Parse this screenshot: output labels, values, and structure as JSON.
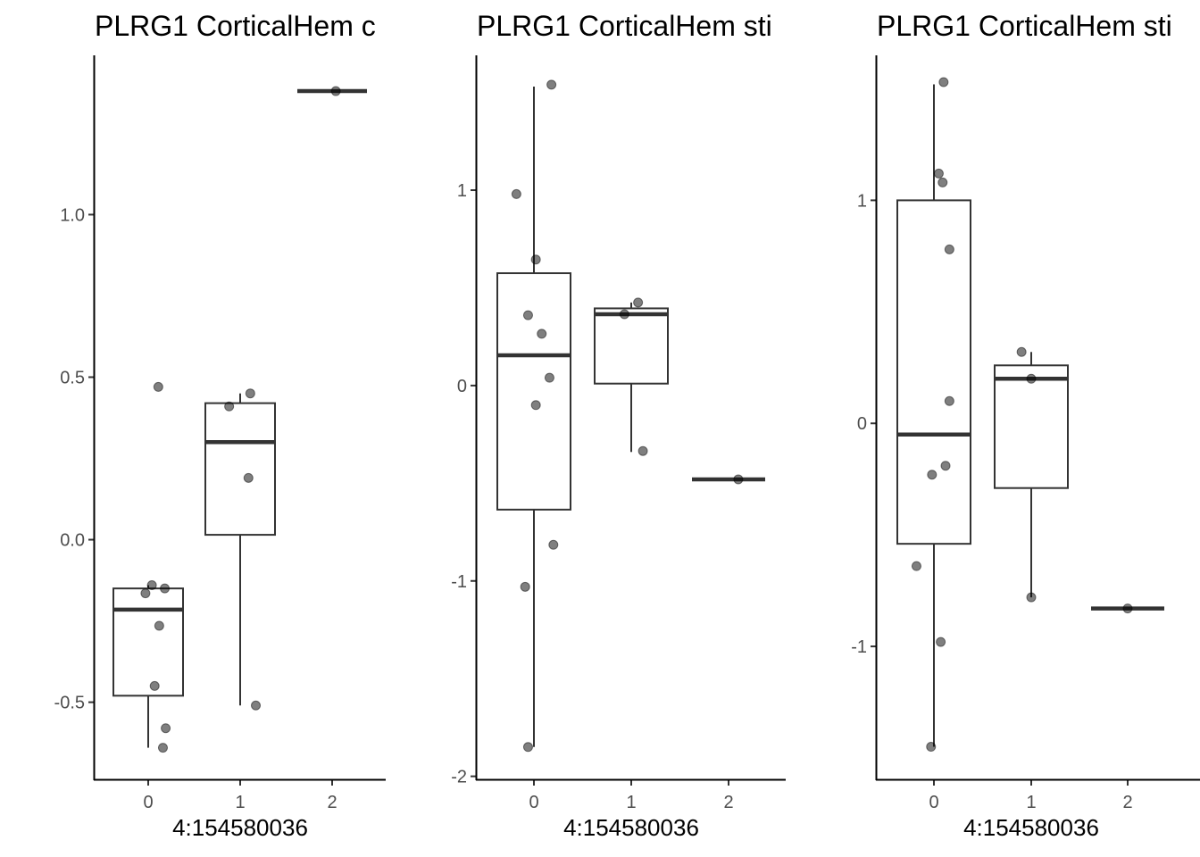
{
  "chart_data": [
    {
      "type": "box",
      "title": "PLRG1 CorticalHem c",
      "xlabel": "4:154580036",
      "ylabel": "",
      "categories": [
        "0",
        "1",
        "2"
      ],
      "ylim": [
        -0.74,
        1.49
      ],
      "yticks": [
        -0.5,
        0.0,
        0.5,
        1.0
      ],
      "ytick_labels": [
        "-0.5",
        "0.0",
        "0.5",
        "1.0"
      ],
      "boxes": [
        {
          "category": "0",
          "whisker_low": -0.64,
          "q1": -0.48,
          "median": -0.215,
          "q3": -0.15,
          "whisker_high": -0.14
        },
        {
          "category": "1",
          "whisker_low": -0.51,
          "q1": 0.015,
          "median": 0.3,
          "q3": 0.42,
          "whisker_high": 0.45
        },
        {
          "category": "2",
          "whisker_low": 1.38,
          "q1": 1.38,
          "median": 1.38,
          "q3": 1.38,
          "whisker_high": 1.38
        }
      ],
      "points": [
        {
          "category": "0",
          "x": 0.11,
          "y": 0.47
        },
        {
          "category": "0",
          "x": -0.03,
          "y": -0.165
        },
        {
          "category": "0",
          "x": 0.04,
          "y": -0.14
        },
        {
          "category": "0",
          "x": 0.18,
          "y": -0.15
        },
        {
          "category": "0",
          "x": 0.12,
          "y": -0.265
        },
        {
          "category": "0",
          "x": 0.07,
          "y": -0.45
        },
        {
          "category": "0",
          "x": 0.19,
          "y": -0.58
        },
        {
          "category": "0",
          "x": 0.16,
          "y": -0.64
        },
        {
          "category": "1",
          "x": 0.11,
          "y": 0.45
        },
        {
          "category": "1",
          "x": -0.12,
          "y": 0.41
        },
        {
          "category": "1",
          "x": 0.09,
          "y": 0.19
        },
        {
          "category": "1",
          "x": 0.17,
          "y": -0.51
        },
        {
          "category": "2",
          "x": 0.04,
          "y": 1.38
        }
      ]
    },
    {
      "type": "box",
      "title": "PLRG1 CorticalHem sti",
      "xlabel": "4:154580036",
      "ylabel": "",
      "categories": [
        "0",
        "1",
        "2"
      ],
      "ylim": [
        -2.02,
        1.69
      ],
      "yticks": [
        -2,
        -1,
        0,
        1
      ],
      "ytick_labels": [
        "-2",
        "-1",
        "0",
        "1"
      ],
      "boxes": [
        {
          "category": "0",
          "whisker_low": -1.85,
          "q1": -0.635,
          "median": 0.155,
          "q3": 0.575,
          "whisker_high": 1.53
        },
        {
          "category": "1",
          "whisker_low": -0.34,
          "q1": 0.01,
          "median": 0.365,
          "q3": 0.395,
          "whisker_high": 0.425
        },
        {
          "category": "2",
          "whisker_low": -0.48,
          "q1": -0.48,
          "median": -0.48,
          "q3": -0.48,
          "whisker_high": -0.48
        }
      ],
      "points": [
        {
          "category": "0",
          "x": 0.18,
          "y": 1.54
        },
        {
          "category": "0",
          "x": -0.18,
          "y": 0.98
        },
        {
          "category": "0",
          "x": 0.02,
          "y": 0.645
        },
        {
          "category": "0",
          "x": -0.06,
          "y": 0.36
        },
        {
          "category": "0",
          "x": 0.08,
          "y": 0.265
        },
        {
          "category": "0",
          "x": 0.16,
          "y": 0.04
        },
        {
          "category": "0",
          "x": 0.02,
          "y": -0.1
        },
        {
          "category": "0",
          "x": 0.2,
          "y": -0.815
        },
        {
          "category": "0",
          "x": -0.09,
          "y": -1.03
        },
        {
          "category": "0",
          "x": -0.06,
          "y": -1.85
        },
        {
          "category": "1",
          "x": 0.07,
          "y": 0.425
        },
        {
          "category": "1",
          "x": -0.07,
          "y": 0.365
        },
        {
          "category": "1",
          "x": 0.12,
          "y": -0.335
        },
        {
          "category": "2",
          "x": 0.1,
          "y": -0.48
        }
      ]
    },
    {
      "type": "box",
      "title": "PLRG1 CorticalHem sti",
      "xlabel": "4:154580036",
      "ylabel": "",
      "categories": [
        "0",
        "1",
        "2"
      ],
      "ylim": [
        -1.6,
        1.65
      ],
      "yticks": [
        -1,
        0,
        1
      ],
      "ytick_labels": [
        "-1",
        "0",
        "1"
      ],
      "boxes": [
        {
          "category": "0",
          "whisker_low": -1.45,
          "q1": -0.54,
          "median": -0.05,
          "q3": 1.0,
          "whisker_high": 1.52
        },
        {
          "category": "1",
          "whisker_low": -0.78,
          "q1": -0.29,
          "median": 0.2,
          "q3": 0.26,
          "whisker_high": 0.32
        },
        {
          "category": "2",
          "whisker_low": -0.83,
          "q1": -0.83,
          "median": -0.83,
          "q3": -0.83,
          "whisker_high": -0.83
        }
      ],
      "points": [
        {
          "category": "0",
          "x": 0.1,
          "y": 1.53
        },
        {
          "category": "0",
          "x": 0.05,
          "y": 1.12
        },
        {
          "category": "0",
          "x": 0.09,
          "y": 1.08
        },
        {
          "category": "0",
          "x": 0.16,
          "y": 0.78
        },
        {
          "category": "0",
          "x": 0.16,
          "y": 0.1
        },
        {
          "category": "0",
          "x": 0.12,
          "y": -0.19
        },
        {
          "category": "0",
          "x": -0.02,
          "y": -0.23
        },
        {
          "category": "0",
          "x": -0.18,
          "y": -0.64
        },
        {
          "category": "0",
          "x": 0.07,
          "y": -0.98
        },
        {
          "category": "0",
          "x": -0.03,
          "y": -1.45
        },
        {
          "category": "1",
          "x": -0.1,
          "y": 0.32
        },
        {
          "category": "1",
          "x": 0.0,
          "y": 0.2
        },
        {
          "category": "1",
          "x": 0.0,
          "y": -0.78
        },
        {
          "category": "2",
          "x": 0.0,
          "y": -0.83
        }
      ]
    }
  ]
}
